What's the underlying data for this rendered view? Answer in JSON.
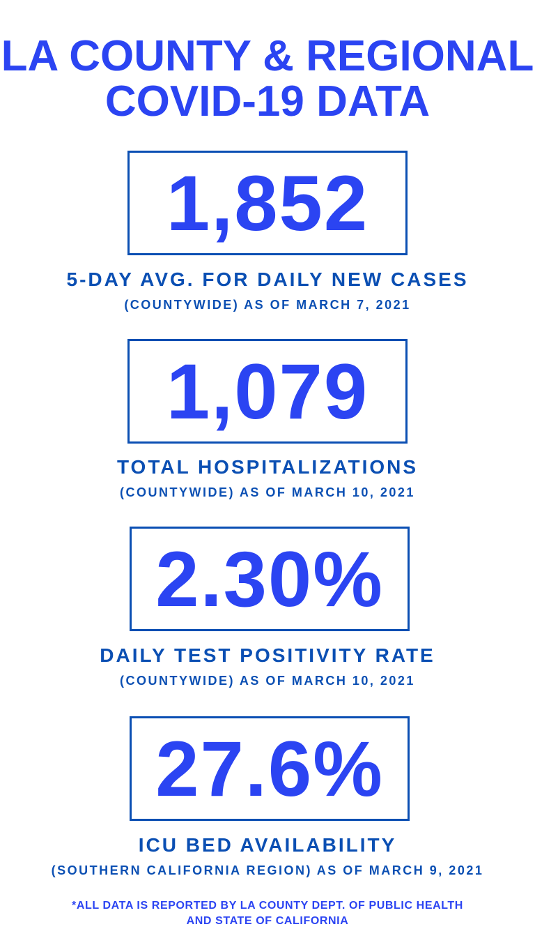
{
  "header": {
    "title_line1": "LA COUNTY & REGIONAL",
    "title_line2": "COVID-19 DATA"
  },
  "stats": [
    {
      "value": "1,852",
      "label": "5-DAY AVG. FOR DAILY NEW CASES",
      "sub": "(COUNTYWIDE) AS OF MARCH 7, 2021"
    },
    {
      "value": "1,079",
      "label": "TOTAL HOSPITALIZATIONS",
      "sub": "(COUNTYWIDE) AS OF MARCH 10, 2021"
    },
    {
      "value": "2.30%",
      "label": "DAILY TEST POSITIVITY RATE",
      "sub": "(COUNTYWIDE) AS OF MARCH 10, 2021"
    },
    {
      "value": "27.6%",
      "label": "ICU BED AVAILABILITY",
      "sub": "(SOUTHERN CALIFORNIA REGION) AS OF MARCH 9, 2021"
    }
  ],
  "footnote": {
    "line1": "*ALL DATA IS REPORTED BY LA COUNTY DEPT. OF PUBLIC HEALTH",
    "line2": "AND STATE OF CALIFORNIA"
  },
  "colors": {
    "accent": "#2b44f2",
    "dark_blue": "#0b4fb3",
    "background": "#ffffff"
  }
}
